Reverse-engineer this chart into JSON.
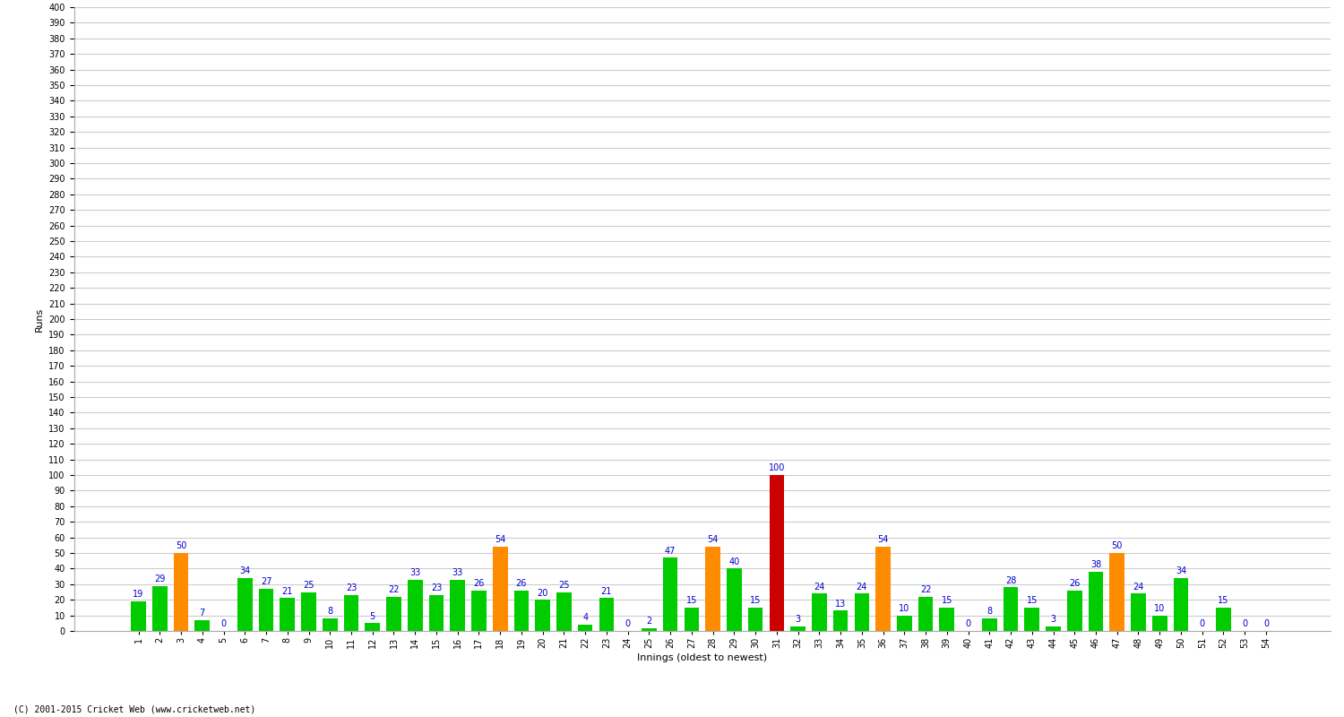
{
  "innings": [
    1,
    2,
    3,
    4,
    5,
    6,
    7,
    8,
    9,
    10,
    11,
    12,
    13,
    14,
    15,
    16,
    17,
    18,
    19,
    20,
    21,
    22,
    23,
    24,
    25,
    26,
    27,
    28,
    29,
    30,
    31,
    32,
    33,
    34,
    35,
    36,
    37,
    38,
    39,
    40,
    41,
    42,
    43,
    44,
    45,
    46,
    47,
    48,
    49,
    50,
    51,
    52,
    53,
    54
  ],
  "values": [
    19,
    29,
    50,
    7,
    0,
    34,
    27,
    21,
    25,
    8,
    23,
    5,
    22,
    33,
    23,
    33,
    26,
    54,
    26,
    20,
    25,
    4,
    21,
    0,
    2,
    47,
    15,
    54,
    40,
    15,
    100,
    3,
    24,
    13,
    24,
    54,
    10,
    22,
    15,
    0,
    8,
    28,
    15,
    3,
    26,
    38,
    50,
    24,
    10,
    34,
    0,
    15,
    0,
    0
  ],
  "colors": [
    "#00cc00",
    "#00cc00",
    "#ff8c00",
    "#00cc00",
    "#00cc00",
    "#00cc00",
    "#00cc00",
    "#00cc00",
    "#00cc00",
    "#00cc00",
    "#00cc00",
    "#00cc00",
    "#00cc00",
    "#00cc00",
    "#00cc00",
    "#00cc00",
    "#00cc00",
    "#ff8c00",
    "#00cc00",
    "#00cc00",
    "#00cc00",
    "#00cc00",
    "#00cc00",
    "#00cc00",
    "#00cc00",
    "#00cc00",
    "#00cc00",
    "#ff8c00",
    "#00cc00",
    "#00cc00",
    "#cc0000",
    "#00cc00",
    "#00cc00",
    "#00cc00",
    "#00cc00",
    "#ff8c00",
    "#00cc00",
    "#00cc00",
    "#00cc00",
    "#00cc00",
    "#00cc00",
    "#00cc00",
    "#00cc00",
    "#00cc00",
    "#00cc00",
    "#00cc00",
    "#ff8c00",
    "#00cc00",
    "#00cc00",
    "#00cc00",
    "#00cc00",
    "#00cc00",
    "#00cc00",
    "#00cc00"
  ],
  "xlabel": "Innings (oldest to newest)",
  "ylabel": "Runs",
  "ylim": [
    0,
    400
  ],
  "yticks": [
    0,
    10,
    20,
    30,
    40,
    50,
    60,
    70,
    80,
    90,
    100,
    110,
    120,
    130,
    140,
    150,
    160,
    170,
    180,
    190,
    200,
    210,
    220,
    230,
    240,
    250,
    260,
    270,
    280,
    290,
    300,
    310,
    320,
    330,
    340,
    350,
    360,
    370,
    380,
    390,
    400
  ],
  "bg_color": "#ffffff",
  "grid_color": "#cccccc",
  "label_color": "#0000cc",
  "label_fontsize": 7,
  "tick_fontsize": 7,
  "axis_label_fontsize": 8,
  "footer": "(C) 2001-2015 Cricket Web (www.cricketweb.net)"
}
